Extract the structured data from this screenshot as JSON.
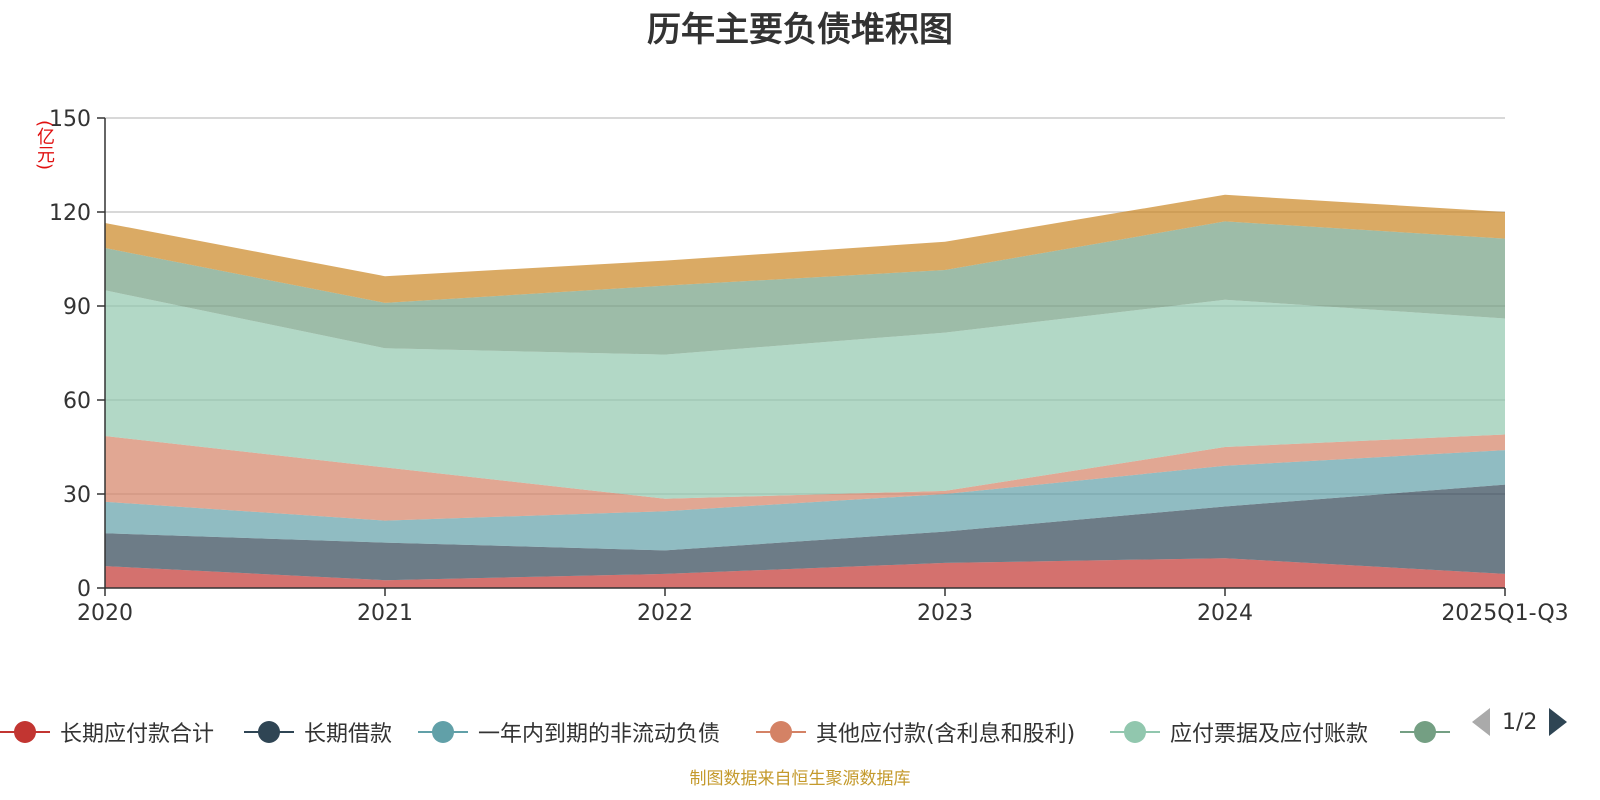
{
  "chart_data": {
    "type": "area",
    "title": "历年主要负债堆积图",
    "unit_label": "(亿元)",
    "categories": [
      "2020",
      "2021",
      "2022",
      "2023",
      "2024",
      "2025Q1-Q3"
    ],
    "ylim": [
      0,
      150
    ],
    "yticks": [
      0,
      30,
      60,
      90,
      120,
      150
    ],
    "stacked": true,
    "grid": true,
    "series": [
      {
        "name": "长期应付款合计",
        "color": "#c23531",
        "values": [
          7,
          2.5,
          4.5,
          8,
          9.5,
          4.5
        ]
      },
      {
        "name": "长期借款",
        "color": "#2f4554",
        "values": [
          10.5,
          12,
          7.5,
          10,
          16.5,
          28.5
        ]
      },
      {
        "name": "一年内到期的非流动负债",
        "color": "#61a0a8",
        "values": [
          10,
          7,
          12.5,
          12,
          13,
          11
        ]
      },
      {
        "name": "其他应付款(含利息和股利)",
        "color": "#d48265",
        "values": [
          21,
          17,
          4,
          1,
          6,
          5
        ]
      },
      {
        "name": "应付票据及应付账款",
        "color": "#91c7ae",
        "values": [
          46.5,
          38,
          46,
          50.5,
          47,
          37
        ]
      },
      {
        "name": "",
        "color": "#749f83",
        "values": [
          13.5,
          14.5,
          22,
          20,
          25,
          25.5
        ]
      },
      {
        "name": "",
        "color": "#ca8622",
        "values": [
          8,
          8.5,
          8,
          9,
          8.5,
          8.5
        ]
      }
    ],
    "legend_position": "bottom"
  },
  "legend": {
    "items": [
      {
        "label": "长期应付款合计",
        "color": "#c23531"
      },
      {
        "label": "长期借款",
        "color": "#2f4554"
      },
      {
        "label": "一年内到期的非流动负债",
        "color": "#61a0a8"
      },
      {
        "label": "其他应付款(含利息和股利)",
        "color": "#d48265"
      },
      {
        "label": "应付票据及应付账款",
        "color": "#91c7ae"
      },
      {
        "label": "",
        "color": "#749f83"
      }
    ],
    "page_text": "1/2"
  },
  "source_note": "制图数据来自恒生聚源数据库"
}
